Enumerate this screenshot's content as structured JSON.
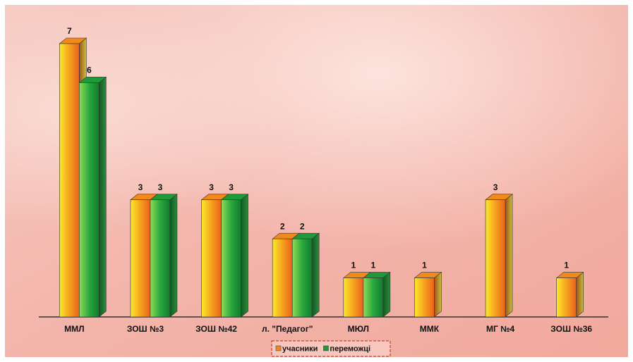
{
  "chart_data": {
    "type": "bar3d",
    "categories": [
      "ММЛ",
      "ЗОШ №3",
      "ЗОШ №42",
      "л. \"Педагог\"",
      "МЮЛ",
      "ММК",
      "МГ №4",
      "ЗОШ №36"
    ],
    "series": [
      {
        "name": "учасники",
        "color": "#f08a1c",
        "values": [
          7,
          3,
          3,
          2,
          1,
          1,
          3,
          1
        ]
      },
      {
        "name": "переможці",
        "color": "#1f9a3a",
        "values": [
          6,
          3,
          3,
          2,
          1,
          null,
          null,
          null
        ]
      }
    ],
    "ylim": [
      0,
      7
    ]
  }
}
